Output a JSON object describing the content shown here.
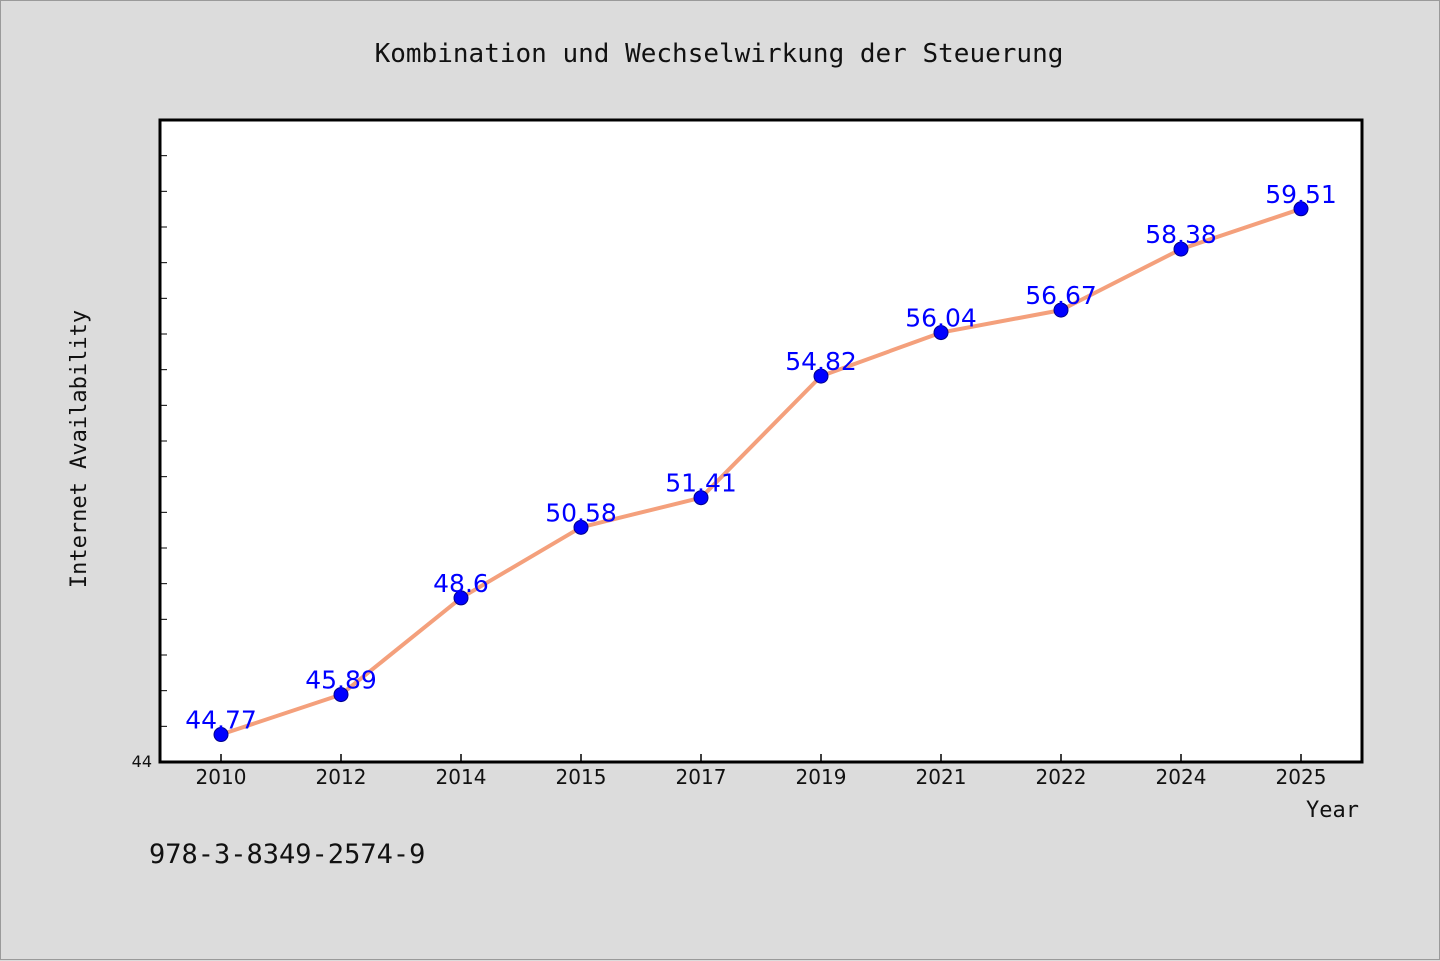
{
  "chart_data": {
    "type": "line",
    "title": "Kombination und Wechselwirkung der Steuerung",
    "xlabel": "Year",
    "ylabel": "Internet Availability",
    "categories": [
      "2010",
      "2012",
      "2014",
      "2015",
      "2017",
      "2019",
      "2021",
      "2022",
      "2024",
      "2025"
    ],
    "series": [
      {
        "values": [
          44.77,
          45.89,
          48.6,
          50.58,
          51.41,
          54.82,
          56.04,
          56.67,
          58.38,
          59.51
        ],
        "data_labels": [
          "44.77",
          "45.89",
          "48.6",
          "50.58",
          "51.41",
          "54.82",
          "56.04",
          "56.67",
          "58.38",
          "59.51"
        ],
        "line_color": "#f4a07c",
        "marker_color": "#0000ff"
      }
    ],
    "ylim": [
      44,
      62
    ],
    "ytick_labels": [
      "44"
    ],
    "grid": false,
    "background": "#dcdcdc",
    "plot_background": "#ffffff",
    "label_color": "#0000ff"
  },
  "footer": {
    "isbn": "978-3-8349-2574-9"
  }
}
